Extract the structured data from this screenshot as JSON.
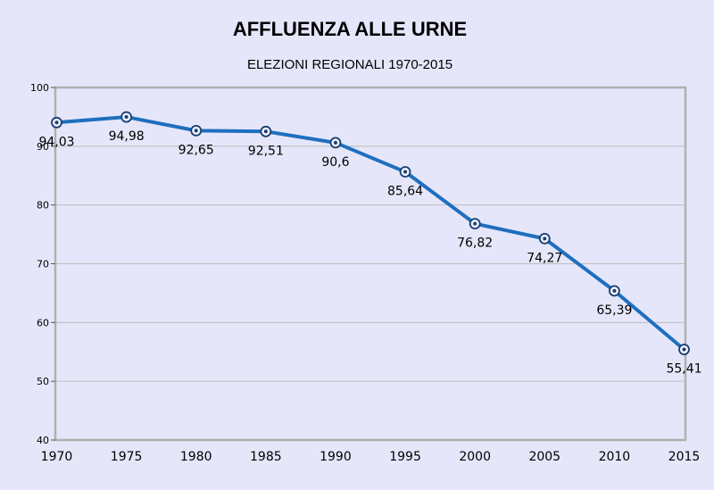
{
  "chart_data": {
    "type": "line",
    "title": "AFFLUENZA ALLE URNE",
    "subtitle": "ELEZIONI REGIONALI 1970-2015",
    "xlabel": "",
    "ylabel": "",
    "categories": [
      "1970",
      "1975",
      "1980",
      "1985",
      "1990",
      "1995",
      "2000",
      "2005",
      "2010",
      "2015"
    ],
    "values": [
      94.03,
      94.98,
      92.65,
      92.51,
      90.6,
      85.64,
      76.82,
      74.27,
      65.39,
      55.41
    ],
    "data_labels": [
      "94,03",
      "94,98",
      "92,65",
      "92,51",
      "90,6",
      "85,64",
      "76,82",
      "74,27",
      "65,39",
      "55,41"
    ],
    "ylim": [
      40,
      100
    ],
    "yticks": [
      "40",
      "50",
      "60",
      "70",
      "80",
      "90",
      "100"
    ],
    "grid": true,
    "legend": "none",
    "colors": {
      "line": "#1f6fbf",
      "background": "#e6e6fa",
      "grid": "#bdbdbd",
      "frame": "#b0b0b0"
    }
  }
}
